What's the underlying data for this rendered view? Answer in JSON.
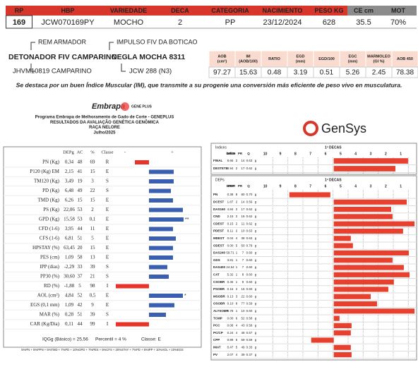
{
  "header": {
    "columns": [
      "RP",
      "HBP",
      "VARIEDADE",
      "DECA",
      "CATEGORIA",
      "NACIMIENTO",
      "PESO KG",
      "CE cm",
      "MOT"
    ],
    "values": [
      "169",
      "JCW070169PY",
      "MOCHO",
      "2",
      "PP",
      "23/12/2024",
      "628",
      "35.5",
      "70%"
    ]
  },
  "pedigree": {
    "sire_sire": "REM ARMADOR",
    "sire": "DETONADOR FIV CAMPARINO",
    "sire_dam": "JHVM10819 CAMPARINO",
    "dam_sire": "IMPULSO FIV DA BOTICAO",
    "dam": "NEGLA MOCHA 8311",
    "dam_dam": "JCW 288 (N3)"
  },
  "carcass": {
    "columns": [
      [
        "AOB",
        "(cm²)"
      ],
      [
        "IM",
        "(AOB/100)"
      ],
      [
        "RATIO"
      ],
      [
        "EGD",
        "(mm)"
      ],
      [
        "EGD/100"
      ],
      [
        "EGC",
        "(mm)"
      ],
      [
        "MARMOLEO",
        "(GI %)"
      ],
      [
        "AOB 450"
      ]
    ],
    "values": [
      "97.27",
      "15.63",
      "0.48",
      "3.19",
      "0.51",
      "5.26",
      "2.45",
      "78.38"
    ]
  },
  "note": "Se destaca por un buen Índice Muscular (IM), que transmite a su progenie una conversión más eficiente de peso vivo en musculatura.",
  "program": {
    "logo": "Embrapa",
    "logo2": "GENE PLUS",
    "lines": [
      "Programa Embrapa de Melhoramento de Gado de Corte - GENEPLUS",
      "RESULTADOS DA AVALIAÇÃO GENÉTICA GENÔMICA",
      "RAÇA NELORE",
      "Julho/2025"
    ],
    "brand": "GenSys"
  },
  "chart_data": [
    {
      "type": "bar",
      "columns": [
        "DEPg",
        "AC",
        "%",
        "Classe",
        "-",
        "+"
      ],
      "xlim": [
        -50,
        50
      ],
      "positive_color": "#3a5fb0",
      "negative_color": "#e8322a",
      "rows": [
        {
          "label": "PN (Kg)",
          "dep": "0,34",
          "ac": 48,
          "pct": "69",
          "classe": "R"
        },
        {
          "label": "P120 (Kg) EM",
          "dep": "2,15",
          "ac": 41,
          "pct": "15",
          "classe": "E"
        },
        {
          "label": "TM120 (Kg)",
          "dep": "3,49",
          "ac": 19,
          "pct": "3",
          "classe": "S"
        },
        {
          "label": "PD (Kg)",
          "dep": "6,48",
          "ac": 49,
          "pct": "22",
          "classe": "S"
        },
        {
          "label": "TMD (Kg)",
          "dep": "6,26",
          "ac": 15,
          "pct": "15",
          "classe": "E"
        },
        {
          "label": "PS (Kg)",
          "dep": "22,06",
          "ac": 53,
          "pct": "2",
          "classe": "E"
        },
        {
          "label": "GPD (Kg)",
          "dep": "15,58",
          "ac": 53,
          "pct": "0,1",
          "classe": "E",
          "flag": "**"
        },
        {
          "label": "CFD (1-6)",
          "dep": "3,95",
          "ac": 44,
          "pct": "11",
          "classe": "E"
        },
        {
          "label": "CFS (1-6)",
          "dep": "6,81",
          "ac": 51,
          "pct": "5",
          "classe": "E"
        },
        {
          "label": "HPSTAY (%)",
          "dep": "63,45",
          "ac": 20,
          "pct": "15",
          "classe": "E"
        },
        {
          "label": "PES (cm)",
          "dep": "1,09",
          "ac": 58,
          "pct": "13",
          "classe": "E"
        },
        {
          "label": "IPP (dias)",
          "dep": "-2,29",
          "ac": 33,
          "pct": "39",
          "classe": "S"
        },
        {
          "label": "PP30 (%)",
          "dep": "30,60",
          "ac": 37,
          "pct": "21",
          "classe": "S"
        },
        {
          "label": "RD (%)",
          "dep": "-1,88",
          "ac": 5,
          "pct": "98",
          "classe": "I"
        },
        {
          "label": "AOL (cm²)",
          "dep": "4,84",
          "ac": 52,
          "pct": "0,5",
          "classe": "E",
          "flag": "*"
        },
        {
          "label": "EGS (0,1 mm)",
          "dep": "1,09",
          "ac": 42,
          "pct": "9",
          "classe": "E"
        },
        {
          "label": "MAR (%)",
          "dep": "0,28",
          "ac": 51,
          "pct": "39",
          "classe": "S"
        },
        {
          "label": "CAR (Kg/Dia)",
          "dep": "0,11",
          "ac": 44,
          "pct": "99",
          "classe": "I"
        }
      ],
      "values": [
        -20,
        35,
        35,
        31,
        34,
        48,
        49,
        34,
        38,
        34,
        34,
        26,
        28,
        -47,
        48,
        36,
        24,
        -47
      ],
      "footer": [
        "IQGg (Básico) = 25,56",
        "Percentil = 4 %",
        "Classe: E"
      ],
      "formula": "5%PN + 5%PPN + 5%TMD + 7%PD + 10%GPD + 7%PES + 5%CFS + 20%STAY + 7%PD + 5%IPP + 10%AOL + 10%EGS"
    },
    {
      "type": "range-bar",
      "title": "Índices",
      "deca_title": "1ª DECAS",
      "columns": [
        "Índice",
        "DPER",
        "PR",
        "Q"
      ],
      "xlim": [
        10.5,
        0
      ],
      "xticks": [
        10,
        9,
        8,
        7,
        6,
        5,
        4,
        3,
        2,
        1
      ],
      "color": "#e8402f",
      "rows": [
        {
          "name": "FINAL",
          "cells": [
            "8.66",
            "2",
            "14",
            "0.63",
            "g"
          ]
        },
        {
          "name": "DESTETE",
          "cells": [
            "8.94",
            "2",
            "17",
            "0.62",
            "g"
          ]
        }
      ],
      "values": [
        [
          5.45,
          0.52
        ],
        [
          5.45,
          1.36
        ]
      ]
    },
    {
      "type": "range-bar",
      "title": "DEPs",
      "deca_title": "1ª DECAS",
      "columns": [
        "DEP",
        "DPER",
        "PR",
        "Q"
      ],
      "xlim": [
        10.5,
        0
      ],
      "xticks": [
        10,
        9,
        8,
        7,
        6,
        5,
        4,
        3,
        2,
        1
      ],
      "color": "#e8402f",
      "rows": [
        {
          "name": "PN",
          "cells": [
            "0.38",
            "8",
            "80",
            "0.70",
            "g"
          ]
        },
        {
          "name": "DCEST",
          "cells": [
            "1.87",
            "2",
            "14",
            "0.56",
            "g"
          ]
        },
        {
          "name": "DAS160",
          "cells": [
            "4.84",
            "2",
            "17",
            "0.62",
            "g"
          ]
        },
        {
          "name": "CND",
          "cells": [
            "2.15",
            "2",
            "16",
            "0.62",
            "g"
          ]
        },
        {
          "name": "CDEST",
          "cells": [
            "0.15",
            "2",
            "11",
            "0.62",
            "g"
          ]
        },
        {
          "name": "PDEST",
          "cells": [
            "8.11",
            "2",
            "10",
            "0.63",
            "g"
          ]
        },
        {
          "name": "MDEST",
          "cells": [
            "0.04",
            "4",
            "38",
            "0.63",
            "g"
          ]
        },
        {
          "name": "ODEST",
          "cells": [
            "0.00",
            "5",
            "50",
            "0.79",
            "g"
          ]
        },
        {
          "name": "DAS240",
          "cells": [
            "59.71",
            "1",
            "7",
            "0.60",
            "g"
          ]
        },
        {
          "name": "GDS",
          "cells": [
            "3.81",
            "1",
            "7",
            "0.60",
            "g"
          ]
        },
        {
          "name": "DAS400",
          "cells": [
            "24.54",
            "1",
            "7",
            "0.60",
            "g"
          ]
        },
        {
          "name": "CAT",
          "cells": [
            "5.32",
            "1",
            "8",
            "0.60",
            "g"
          ]
        },
        {
          "name": "CSOBR",
          "cells": [
            "0.46",
            "1",
            "9",
            "0.60",
            "g"
          ]
        },
        {
          "name": "PSOBR",
          "cells": [
            "0.16",
            "2",
            "16",
            "0.60",
            "g"
          ]
        },
        {
          "name": "MSOBR",
          "cells": [
            "0.13",
            "3",
            "22",
            "0.60",
            "g"
          ]
        },
        {
          "name": "OSOBR",
          "cells": [
            "0.10",
            "8",
            "77",
            "0.59",
            "g"
          ]
        },
        {
          "name": "ALTSOBR",
          "cells": [
            "0.78",
            "1",
            "10",
            "0.60",
            "g"
          ]
        },
        {
          "name": "TCMP",
          "cells": [
            "0.00",
            "6",
            "52",
            "0.58",
            "g"
          ]
        },
        {
          "name": "PCC",
          "cells": [
            "0.08",
            "4",
            "43",
            "0.58",
            "g"
          ]
        },
        {
          "name": "PC/CP",
          "cells": [
            "0.24",
            "4",
            "48",
            "0.57",
            "g"
          ]
        },
        {
          "name": "CPP",
          "cells": [
            "0.99",
            "6",
            "59",
            "0.59",
            "g"
          ]
        },
        {
          "name": "IMAT",
          "cells": [
            "0.47",
            "5",
            "49",
            "0.33",
            "g"
          ]
        },
        {
          "name": "PV",
          "cells": [
            "2.07",
            "4",
            "39",
            "0.37",
            "g"
          ]
        }
      ],
      "values": [
        [
          8.4,
          5.68
        ],
        [
          5.45,
          0.61
        ],
        [
          5.45,
          1.64
        ],
        [
          5.45,
          1.55
        ],
        [
          5.45,
          0.09
        ],
        [
          5.45,
          0.85
        ],
        [
          5.45,
          4.32
        ],
        [
          5.45,
          4.18
        ],
        [
          5.45,
          0.47
        ],
        [
          5.45,
          1.55
        ],
        [
          5.45,
          0.8
        ],
        [
          5.45,
          0.42
        ],
        [
          5.45,
          1.46
        ],
        [
          5.45,
          1.83
        ],
        [
          5.45,
          3.0
        ],
        [
          5.45,
          2.58
        ],
        [
          5.45,
          0.09
        ],
        [
          5.45,
          5.07
        ],
        [
          5.45,
          4.27
        ],
        [
          5.45,
          4.32
        ],
        [
          6.95,
          5.45
        ],
        [
          5.45,
          4.32
        ],
        [
          5.45,
          4.27
        ]
      ]
    }
  ]
}
